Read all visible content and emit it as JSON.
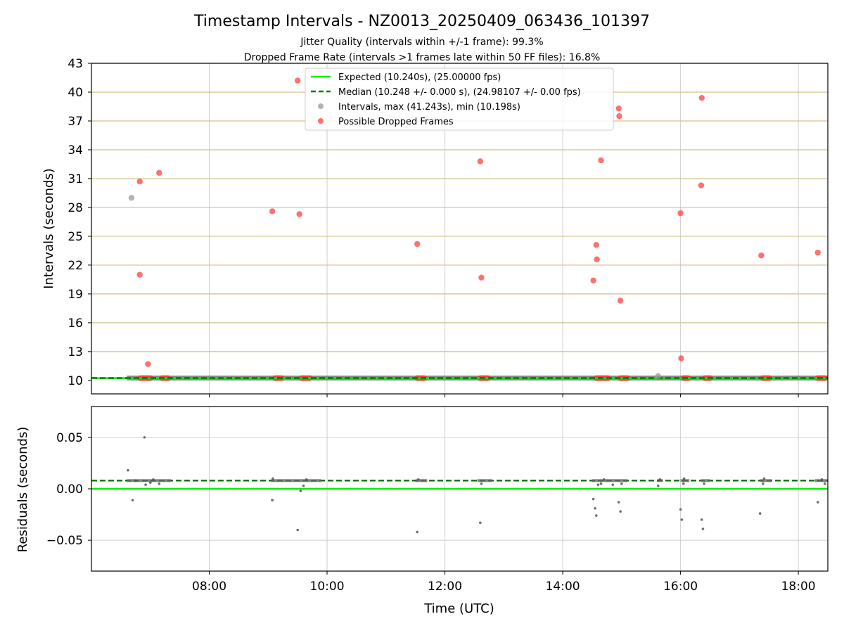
{
  "chart_data": [
    {
      "type": "scatter",
      "title": "Timestamp Intervals - NZ0013_20250409_063436_101397",
      "subtitle_lines": [
        "Jitter Quality (intervals within +/-1 frame): 99.3%",
        "Dropped Frame Rate (intervals >1 frames late within 50 FF files): 16.8%"
      ],
      "ylabel": "Intervals (seconds)",
      "xlim_hours": [
        6.0,
        18.5
      ],
      "ylim": [
        8.6,
        43
      ],
      "yticks": [
        10,
        13,
        16,
        19,
        22,
        25,
        28,
        31,
        34,
        37,
        40,
        43
      ],
      "grid": true,
      "legend_position": "top-center",
      "legend": [
        "Expected (10.240s), (25.00000 fps)",
        "Median (10.248 +/- 0.000 s), (24.98107 +/- 0.00 fps)",
        "Intervals, max (41.243s), min (10.198s)",
        "Possible Dropped Frames"
      ],
      "colors": {
        "expected": "#00ee00",
        "median": "#007a00",
        "intervals": "#999999",
        "dropped": "#ff3333",
        "gridline": "#d2c087"
      },
      "expected_line": 10.24,
      "median_line": 10.248,
      "dropped_frames": [
        [
          6.82,
          30.7
        ],
        [
          6.82,
          21.0
        ],
        [
          6.96,
          11.7
        ],
        [
          7.15,
          31.6
        ],
        [
          9.07,
          27.6
        ],
        [
          9.5,
          41.2
        ],
        [
          9.53,
          27.3
        ],
        [
          11.53,
          24.2
        ],
        [
          12.6,
          32.8
        ],
        [
          12.62,
          20.7
        ],
        [
          14.52,
          20.4
        ],
        [
          14.57,
          24.1
        ],
        [
          14.58,
          22.6
        ],
        [
          14.65,
          32.9
        ],
        [
          14.95,
          38.3
        ],
        [
          14.96,
          37.5
        ],
        [
          14.98,
          18.3
        ],
        [
          16.0,
          27.4
        ],
        [
          16.01,
          12.3
        ],
        [
          16.36,
          39.4
        ],
        [
          16.35,
          30.3
        ],
        [
          17.37,
          23.0
        ],
        [
          18.33,
          23.3
        ]
      ],
      "interval_outliers": [
        [
          6.68,
          29.0
        ],
        [
          15.62,
          10.45
        ]
      ],
      "dropped_clusters_near_expected": [
        [
          6.78,
          7.05
        ],
        [
          7.15,
          7.35
        ],
        [
          9.07,
          9.28
        ],
        [
          9.52,
          9.75
        ],
        [
          11.48,
          11.7
        ],
        [
          12.55,
          12.78
        ],
        [
          14.52,
          14.82
        ],
        [
          14.93,
          15.15
        ],
        [
          16.0,
          16.18
        ],
        [
          16.36,
          16.55
        ],
        [
          17.35,
          17.55
        ],
        [
          18.28,
          18.5
        ]
      ]
    },
    {
      "type": "scatter",
      "ylabel": "Residuals (seconds)",
      "xlabel": "Time (UTC)",
      "xlim_hours": [
        6.0,
        18.5
      ],
      "ylim": [
        -0.08,
        0.08
      ],
      "yticks": [
        0.05,
        0.0,
        -0.05
      ],
      "ytick_labels": [
        "0.05",
        "0.00",
        "−0.05"
      ],
      "xticks_hours": [
        8,
        10,
        12,
        14,
        16,
        18
      ],
      "xtick_labels": [
        "08:00",
        "10:00",
        "12:00",
        "14:00",
        "16:00",
        "18:00"
      ],
      "grid": true,
      "expected_line": 0.0,
      "median_line": 0.008,
      "points": [
        [
          6.62,
          0.018
        ],
        [
          6.7,
          -0.011
        ],
        [
          6.75,
          0.008
        ],
        [
          6.9,
          0.05
        ],
        [
          6.92,
          0.004
        ],
        [
          7.0,
          0.006
        ],
        [
          7.05,
          0.009
        ],
        [
          7.15,
          0.005
        ],
        [
          9.07,
          -0.011
        ],
        [
          9.08,
          0.01
        ],
        [
          9.5,
          -0.04
        ],
        [
          9.55,
          -0.002
        ],
        [
          9.6,
          0.003
        ],
        [
          9.65,
          0.009
        ],
        [
          11.53,
          -0.042
        ],
        [
          11.55,
          0.009
        ],
        [
          12.6,
          -0.033
        ],
        [
          12.62,
          0.005
        ],
        [
          14.52,
          -0.01
        ],
        [
          14.55,
          -0.019
        ],
        [
          14.57,
          -0.026
        ],
        [
          14.6,
          0.004
        ],
        [
          14.65,
          0.005
        ],
        [
          14.7,
          0.009
        ],
        [
          14.85,
          0.004
        ],
        [
          14.95,
          -0.013
        ],
        [
          14.98,
          -0.022
        ],
        [
          15.0,
          0.005
        ],
        [
          15.62,
          0.003
        ],
        [
          15.65,
          0.009
        ],
        [
          16.0,
          -0.02
        ],
        [
          16.02,
          -0.03
        ],
        [
          16.05,
          0.005
        ],
        [
          16.06,
          0.01
        ],
        [
          16.36,
          -0.03
        ],
        [
          16.38,
          -0.039
        ],
        [
          16.4,
          0.005
        ],
        [
          17.35,
          -0.024
        ],
        [
          17.4,
          0.005
        ],
        [
          17.42,
          0.01
        ],
        [
          18.33,
          -0.013
        ],
        [
          18.4,
          0.009
        ],
        [
          18.45,
          0.005
        ]
      ],
      "point_clusters": [
        [
          6.6,
          7.35
        ],
        [
          9.05,
          9.9
        ],
        [
          11.5,
          11.7
        ],
        [
          12.55,
          12.8
        ],
        [
          14.5,
          15.1
        ],
        [
          15.6,
          15.7
        ],
        [
          16.0,
          16.15
        ],
        [
          16.35,
          16.5
        ],
        [
          17.35,
          17.55
        ],
        [
          18.28,
          18.5
        ]
      ]
    }
  ]
}
